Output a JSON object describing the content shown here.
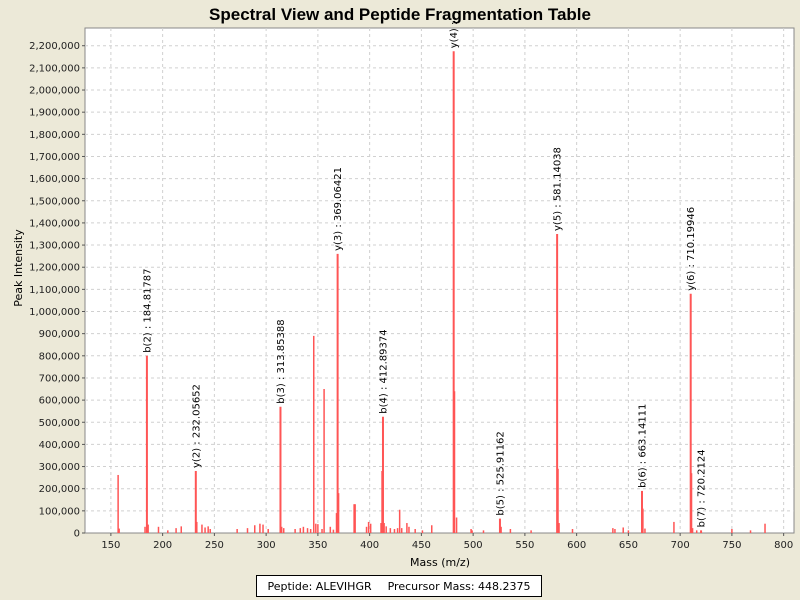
{
  "chart_data": {
    "type": "bar",
    "title": "Spectral View and Peptide Fragmentation Table",
    "xlabel": "Mass (m/z)",
    "ylabel": "Peak Intensity",
    "xlim": [
      125,
      810
    ],
    "ylim": [
      0,
      2280000
    ],
    "x_ticks": [
      150,
      200,
      250,
      300,
      350,
      400,
      450,
      500,
      550,
      600,
      650,
      700,
      750,
      800
    ],
    "y_ticks": [
      0,
      100000,
      200000,
      300000,
      400000,
      500000,
      600000,
      700000,
      800000,
      900000,
      1000000,
      1100000,
      1200000,
      1300000,
      1400000,
      1500000,
      1600000,
      1700000,
      1800000,
      1900000,
      2000000,
      2100000,
      2200000
    ],
    "peak_color": "#ff5555",
    "grid": true,
    "labeled_peaks": [
      {
        "mz": 184.81787,
        "intensity": 800000,
        "label": "b(2) : 184.81787"
      },
      {
        "mz": 232.05652,
        "intensity": 280000,
        "label": "y(2) : 232.05652"
      },
      {
        "mz": 313.85388,
        "intensity": 570000,
        "label": "b(3) : 313.85388"
      },
      {
        "mz": 369.06421,
        "intensity": 1260000,
        "label": "y(3) : 369.06421"
      },
      {
        "mz": 412.89374,
        "intensity": 525000,
        "label": "b(4) : 412.89374"
      },
      {
        "mz": 481.2,
        "intensity": 2175000,
        "label": "y(4) :"
      },
      {
        "mz": 525.91162,
        "intensity": 65000,
        "label": "b(5) : 525.91162"
      },
      {
        "mz": 581.14038,
        "intensity": 1350000,
        "label": "y(5) : 581.14038"
      },
      {
        "mz": 663.14111,
        "intensity": 190000,
        "label": "b(6) : 663.14111"
      },
      {
        "mz": 710.19946,
        "intensity": 1080000,
        "label": "y(6) : 710.19946"
      },
      {
        "mz": 720.2124,
        "intensity": 12000,
        "label": "b(7) : 720.2124"
      }
    ],
    "unlabeled_peaks": [
      {
        "mz": 157,
        "intensity": 262000
      },
      {
        "mz": 158,
        "intensity": 20000
      },
      {
        "mz": 183,
        "intensity": 28000
      },
      {
        "mz": 186,
        "intensity": 38000
      },
      {
        "mz": 196,
        "intensity": 28000
      },
      {
        "mz": 205,
        "intensity": 12000
      },
      {
        "mz": 213,
        "intensity": 22000
      },
      {
        "mz": 218,
        "intensity": 30000
      },
      {
        "mz": 233,
        "intensity": 50000
      },
      {
        "mz": 238,
        "intensity": 38000
      },
      {
        "mz": 241,
        "intensity": 25000
      },
      {
        "mz": 244,
        "intensity": 30000
      },
      {
        "mz": 246,
        "intensity": 18000
      },
      {
        "mz": 272,
        "intensity": 18000
      },
      {
        "mz": 282,
        "intensity": 22000
      },
      {
        "mz": 289,
        "intensity": 35000
      },
      {
        "mz": 294,
        "intensity": 42000
      },
      {
        "mz": 297,
        "intensity": 38000
      },
      {
        "mz": 302,
        "intensity": 18000
      },
      {
        "mz": 315,
        "intensity": 28000
      },
      {
        "mz": 317,
        "intensity": 22000
      },
      {
        "mz": 328,
        "intensity": 18000
      },
      {
        "mz": 333,
        "intensity": 22000
      },
      {
        "mz": 336,
        "intensity": 28000
      },
      {
        "mz": 340,
        "intensity": 22000
      },
      {
        "mz": 343,
        "intensity": 18000
      },
      {
        "mz": 346,
        "intensity": 890000
      },
      {
        "mz": 348,
        "intensity": 42000
      },
      {
        "mz": 350,
        "intensity": 40000
      },
      {
        "mz": 354,
        "intensity": 18000
      },
      {
        "mz": 356,
        "intensity": 650000
      },
      {
        "mz": 362,
        "intensity": 28000
      },
      {
        "mz": 365,
        "intensity": 15000
      },
      {
        "mz": 368,
        "intensity": 90000
      },
      {
        "mz": 370,
        "intensity": 180000
      },
      {
        "mz": 385,
        "intensity": 130000
      },
      {
        "mz": 386,
        "intensity": 130000
      },
      {
        "mz": 397,
        "intensity": 28000
      },
      {
        "mz": 399,
        "intensity": 50000
      },
      {
        "mz": 401,
        "intensity": 42000
      },
      {
        "mz": 411,
        "intensity": 45000
      },
      {
        "mz": 412,
        "intensity": 280000
      },
      {
        "mz": 414,
        "intensity": 45000
      },
      {
        "mz": 416,
        "intensity": 30000
      },
      {
        "mz": 420,
        "intensity": 22000
      },
      {
        "mz": 424,
        "intensity": 18000
      },
      {
        "mz": 427,
        "intensity": 22000
      },
      {
        "mz": 429,
        "intensity": 105000
      },
      {
        "mz": 431,
        "intensity": 22000
      },
      {
        "mz": 436,
        "intensity": 45000
      },
      {
        "mz": 438,
        "intensity": 28000
      },
      {
        "mz": 444,
        "intensity": 18000
      },
      {
        "mz": 451,
        "intensity": 12000
      },
      {
        "mz": 460,
        "intensity": 35000
      },
      {
        "mz": 482,
        "intensity": 640000
      },
      {
        "mz": 484,
        "intensity": 70000
      },
      {
        "mz": 498,
        "intensity": 18000
      },
      {
        "mz": 499,
        "intensity": 12000
      },
      {
        "mz": 510,
        "intensity": 12000
      },
      {
        "mz": 527,
        "intensity": 28000
      },
      {
        "mz": 536,
        "intensity": 18000
      },
      {
        "mz": 556,
        "intensity": 12000
      },
      {
        "mz": 582,
        "intensity": 290000
      },
      {
        "mz": 583,
        "intensity": 45000
      },
      {
        "mz": 596,
        "intensity": 18000
      },
      {
        "mz": 635,
        "intensity": 22000
      },
      {
        "mz": 637,
        "intensity": 18000
      },
      {
        "mz": 645,
        "intensity": 25000
      },
      {
        "mz": 650,
        "intensity": 12000
      },
      {
        "mz": 664,
        "intensity": 110000
      },
      {
        "mz": 666,
        "intensity": 20000
      },
      {
        "mz": 694,
        "intensity": 50000
      },
      {
        "mz": 711,
        "intensity": 270000
      },
      {
        "mz": 712,
        "intensity": 22000
      },
      {
        "mz": 716,
        "intensity": 12000
      },
      {
        "mz": 750,
        "intensity": 18000
      },
      {
        "mz": 768,
        "intensity": 12000
      },
      {
        "mz": 782,
        "intensity": 42000
      }
    ]
  },
  "legend": {
    "peptide": "Peptide: ALEVIHGR",
    "precursor": "Precursor Mass: 448.2375"
  }
}
